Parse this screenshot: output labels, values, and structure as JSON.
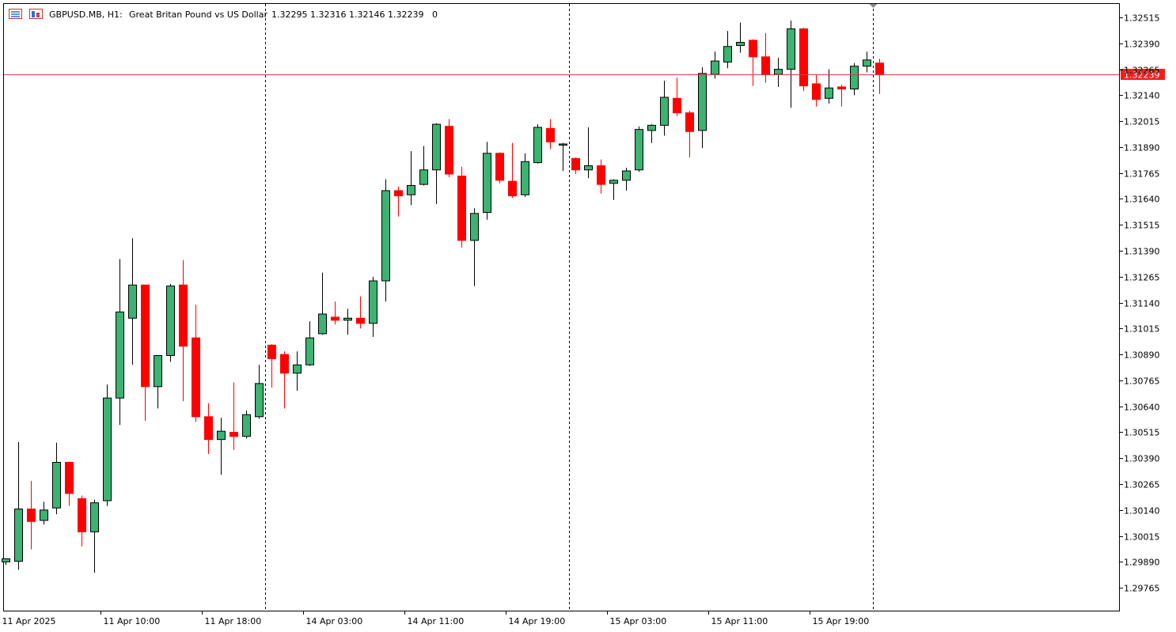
{
  "header": {
    "symbol": "GBPUSD.MB, H1:",
    "description": "Great Britan Pound vs US Dollar",
    "ohlc": "1.32295 1.32316 1.32146 1.32239",
    "extra": "0",
    "icons": [
      "chart-window-icon",
      "chart-template-icon"
    ]
  },
  "colors": {
    "bull": "#3cb371",
    "bear": "#ff0000",
    "outline": "#000000",
    "priceLine": "#e23b3b",
    "priceLabelBg": "#ff1a1a"
  },
  "chart_data": {
    "type": "candlestick",
    "symbol": "GBPUSD.MB",
    "timeframe": "H1",
    "y_ticks": [
      "1.32515",
      "1.32390",
      "1.32265",
      "1.32140",
      "1.32015",
      "1.31890",
      "1.31765",
      "1.31640",
      "1.31515",
      "1.31390",
      "1.31265",
      "1.31140",
      "1.31015",
      "1.30890",
      "1.30765",
      "1.30640",
      "1.30515",
      "1.30390",
      "1.30265",
      "1.30140",
      "1.30015",
      "1.29890",
      "1.29765"
    ],
    "ylim": [
      1.29655,
      1.3258
    ],
    "x_labels": [
      {
        "text": "11 Apr 2025",
        "bar": 0
      },
      {
        "text": "11 Apr 10:00",
        "bar": 8
      },
      {
        "text": "11 Apr 18:00",
        "bar": 16
      },
      {
        "text": "14 Apr 03:00",
        "bar": 24
      },
      {
        "text": "14 Apr 11:00",
        "bar": 32
      },
      {
        "text": "14 Apr 19:00",
        "bar": 40
      },
      {
        "text": "15 Apr 03:00",
        "bar": 48
      },
      {
        "text": "15 Apr 11:00",
        "bar": 56
      },
      {
        "text": "15 Apr 19:00",
        "bar": 64
      }
    ],
    "period_separators_bar": [
      21,
      45,
      69
    ],
    "last_price": "1.32239",
    "last_price_value": 1.32239,
    "candles": [
      {
        "o": 1.2989,
        "h": 1.29905,
        "l": 1.29875,
        "c": 1.29905
      },
      {
        "o": 1.29893,
        "h": 1.30468,
        "l": 1.29852,
        "c": 1.30145
      },
      {
        "o": 1.30145,
        "h": 1.3028,
        "l": 1.2995,
        "c": 1.30085
      },
      {
        "o": 1.3009,
        "h": 1.3018,
        "l": 1.3007,
        "c": 1.3014
      },
      {
        "o": 1.3015,
        "h": 1.30465,
        "l": 1.3012,
        "c": 1.3037
      },
      {
        "o": 1.3037,
        "h": 1.30373,
        "l": 1.3016,
        "c": 1.3022
      },
      {
        "o": 1.30195,
        "h": 1.3021,
        "l": 1.29965,
        "c": 1.30035
      },
      {
        "o": 1.30035,
        "h": 1.3019,
        "l": 1.29838,
        "c": 1.30175
      },
      {
        "o": 1.30185,
        "h": 1.30745,
        "l": 1.3016,
        "c": 1.3068
      },
      {
        "o": 1.3068,
        "h": 1.3135,
        "l": 1.3055,
        "c": 1.31095
      },
      {
        "o": 1.31065,
        "h": 1.3145,
        "l": 1.3084,
        "c": 1.31225
      },
      {
        "o": 1.31225,
        "h": 1.31225,
        "l": 1.3057,
        "c": 1.30735
      },
      {
        "o": 1.30735,
        "h": 1.3088,
        "l": 1.3063,
        "c": 1.30885
      },
      {
        "o": 1.30885,
        "h": 1.3123,
        "l": 1.30855,
        "c": 1.3122
      },
      {
        "o": 1.31225,
        "h": 1.31345,
        "l": 1.30665,
        "c": 1.3093
      },
      {
        "o": 1.3097,
        "h": 1.3113,
        "l": 1.30565,
        "c": 1.3059
      },
      {
        "o": 1.3059,
        "h": 1.30655,
        "l": 1.3041,
        "c": 1.3048
      },
      {
        "o": 1.3048,
        "h": 1.30585,
        "l": 1.3031,
        "c": 1.3052
      },
      {
        "o": 1.30515,
        "h": 1.30755,
        "l": 1.3043,
        "c": 1.30495
      },
      {
        "o": 1.30495,
        "h": 1.3062,
        "l": 1.30485,
        "c": 1.306
      },
      {
        "o": 1.3059,
        "h": 1.3084,
        "l": 1.3058,
        "c": 1.3075
      },
      {
        "o": 1.30935,
        "h": 1.3094,
        "l": 1.3073,
        "c": 1.3087
      },
      {
        "o": 1.3089,
        "h": 1.30905,
        "l": 1.3063,
        "c": 1.308
      },
      {
        "o": 1.308,
        "h": 1.30905,
        "l": 1.30715,
        "c": 1.3084
      },
      {
        "o": 1.3084,
        "h": 1.3105,
        "l": 1.30835,
        "c": 1.3097
      },
      {
        "o": 1.3099,
        "h": 1.31285,
        "l": 1.30985,
        "c": 1.31085
      },
      {
        "o": 1.3107,
        "h": 1.31145,
        "l": 1.31035,
        "c": 1.31055
      },
      {
        "o": 1.31055,
        "h": 1.3111,
        "l": 1.30985,
        "c": 1.31065
      },
      {
        "o": 1.31065,
        "h": 1.3117,
        "l": 1.31015,
        "c": 1.3104
      },
      {
        "o": 1.3104,
        "h": 1.31265,
        "l": 1.30975,
        "c": 1.31245
      },
      {
        "o": 1.31245,
        "h": 1.31735,
        "l": 1.31145,
        "c": 1.3168
      },
      {
        "o": 1.3168,
        "h": 1.317,
        "l": 1.31555,
        "c": 1.31655
      },
      {
        "o": 1.3166,
        "h": 1.3187,
        "l": 1.3161,
        "c": 1.31705
      },
      {
        "o": 1.3171,
        "h": 1.31895,
        "l": 1.31705,
        "c": 1.3178
      },
      {
        "o": 1.3178,
        "h": 1.32005,
        "l": 1.31615,
        "c": 1.32
      },
      {
        "o": 1.3199,
        "h": 1.32025,
        "l": 1.31745,
        "c": 1.3176
      },
      {
        "o": 1.3175,
        "h": 1.31795,
        "l": 1.31405,
        "c": 1.3144
      },
      {
        "o": 1.3144,
        "h": 1.31595,
        "l": 1.3122,
        "c": 1.3157
      },
      {
        "o": 1.31575,
        "h": 1.31915,
        "l": 1.3154,
        "c": 1.3186
      },
      {
        "o": 1.3186,
        "h": 1.31865,
        "l": 1.31715,
        "c": 1.3173
      },
      {
        "o": 1.31725,
        "h": 1.3191,
        "l": 1.31645,
        "c": 1.31655
      },
      {
        "o": 1.3166,
        "h": 1.3186,
        "l": 1.3165,
        "c": 1.3182
      },
      {
        "o": 1.31815,
        "h": 1.32,
        "l": 1.3181,
        "c": 1.31985
      },
      {
        "o": 1.3198,
        "h": 1.32025,
        "l": 1.3188,
        "c": 1.31915
      },
      {
        "o": 1.31905,
        "h": 1.3191,
        "l": 1.31775,
        "c": 1.31905
      },
      {
        "o": 1.31835,
        "h": 1.3184,
        "l": 1.3176,
        "c": 1.3178
      },
      {
        "o": 1.3178,
        "h": 1.31985,
        "l": 1.3174,
        "c": 1.318
      },
      {
        "o": 1.318,
        "h": 1.3183,
        "l": 1.31665,
        "c": 1.3171
      },
      {
        "o": 1.31715,
        "h": 1.31735,
        "l": 1.31635,
        "c": 1.3173
      },
      {
        "o": 1.3173,
        "h": 1.3179,
        "l": 1.3168,
        "c": 1.31775
      },
      {
        "o": 1.3178,
        "h": 1.3199,
        "l": 1.3177,
        "c": 1.31975
      },
      {
        "o": 1.3197,
        "h": 1.32,
        "l": 1.3191,
        "c": 1.31995
      },
      {
        "o": 1.31995,
        "h": 1.3221,
        "l": 1.31945,
        "c": 1.3213
      },
      {
        "o": 1.32125,
        "h": 1.32225,
        "l": 1.3204,
        "c": 1.32055
      },
      {
        "o": 1.32055,
        "h": 1.32065,
        "l": 1.3184,
        "c": 1.31965
      },
      {
        "o": 1.3197,
        "h": 1.32275,
        "l": 1.31885,
        "c": 1.32245
      },
      {
        "o": 1.3224,
        "h": 1.3235,
        "l": 1.3222,
        "c": 1.32305
      },
      {
        "o": 1.323,
        "h": 1.3245,
        "l": 1.3227,
        "c": 1.32375
      },
      {
        "o": 1.3238,
        "h": 1.3249,
        "l": 1.32345,
        "c": 1.32395
      },
      {
        "o": 1.32405,
        "h": 1.3241,
        "l": 1.32185,
        "c": 1.32325
      },
      {
        "o": 1.32325,
        "h": 1.3244,
        "l": 1.322,
        "c": 1.3224
      },
      {
        "o": 1.3224,
        "h": 1.3232,
        "l": 1.3218,
        "c": 1.32265
      },
      {
        "o": 1.32265,
        "h": 1.325,
        "l": 1.3208,
        "c": 1.3246
      },
      {
        "o": 1.3246,
        "h": 1.32465,
        "l": 1.3216,
        "c": 1.32185
      },
      {
        "o": 1.32195,
        "h": 1.3224,
        "l": 1.32085,
        "c": 1.3212
      },
      {
        "o": 1.32125,
        "h": 1.32265,
        "l": 1.321,
        "c": 1.32175
      },
      {
        "o": 1.3218,
        "h": 1.3219,
        "l": 1.32085,
        "c": 1.3217
      },
      {
        "o": 1.3217,
        "h": 1.32295,
        "l": 1.3214,
        "c": 1.3228
      },
      {
        "o": 1.3228,
        "h": 1.3235,
        "l": 1.3225,
        "c": 1.3231
      },
      {
        "o": 1.32295,
        "h": 1.32316,
        "l": 1.32146,
        "c": 1.32239
      }
    ]
  }
}
